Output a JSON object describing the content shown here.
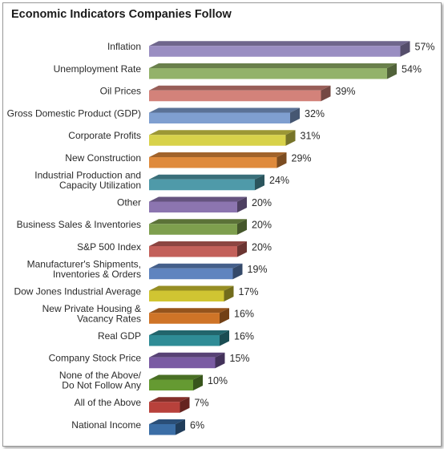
{
  "chart_data": {
    "type": "bar",
    "orientation": "horizontal",
    "title": "Economic Indicators Companies Follow",
    "xlim": [
      0,
      57
    ],
    "grid": false,
    "legend": "none",
    "value_suffix": "%",
    "categories": [
      "Inflation",
      "Unemployment Rate",
      "Oil Prices",
      "Gross Domestic Product (GDP)",
      "Corporate Profits",
      "New Construction",
      "Industrial Production and\nCapacity Utilization",
      "Other",
      "Business Sales & Inventories",
      "S&P 500 Index",
      "Manufacturer's Shipments,\nInventories & Orders",
      "Dow Jones Industrial Average",
      "New Private Housing &\nVacancy Rates",
      "Real GDP",
      "Company Stock Price",
      "None of the Above/\nDo Not Follow Any",
      "All of the Above",
      "National Income"
    ],
    "values": [
      57,
      54,
      39,
      32,
      31,
      29,
      24,
      20,
      20,
      20,
      19,
      17,
      16,
      16,
      15,
      10,
      7,
      6
    ],
    "value_labels": [
      "57%",
      "54%",
      "39%",
      "32%",
      "31%",
      "29%",
      "24%",
      "20%",
      "20%",
      "20%",
      "19%",
      "17%",
      "16%",
      "16%",
      "15%",
      "10%",
      "7%",
      "6%"
    ],
    "colors": [
      "#9a8ec2",
      "#93b26a",
      "#d3827a",
      "#7f9fd0",
      "#d8d24a",
      "#df8a3c",
      "#4f9aa9",
      "#8c75b0",
      "#7e9f4e",
      "#c3605a",
      "#5f84bf",
      "#d0c532",
      "#cf7427",
      "#2f8c96",
      "#7a5ba3",
      "#659a32",
      "#b8413b",
      "#3b6ea6"
    ]
  }
}
